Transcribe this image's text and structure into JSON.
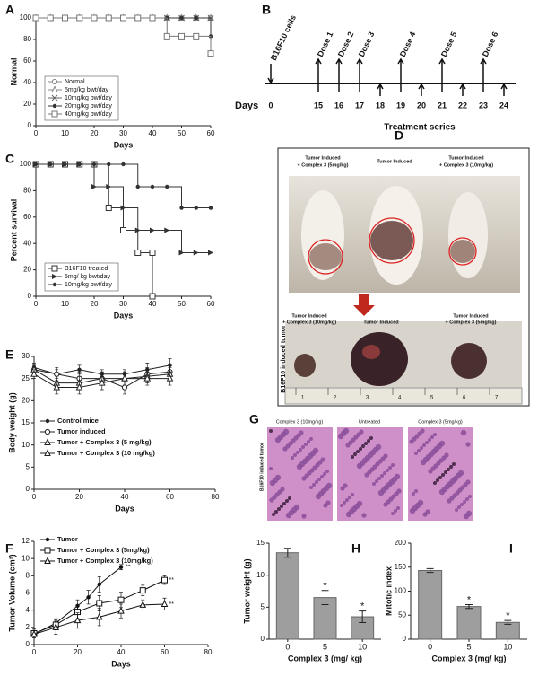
{
  "chart_data": [
    {
      "panel": "A",
      "type": "step",
      "ylabel": "Normal",
      "xlabel": "Days",
      "xlim": [
        0,
        60
      ],
      "xticks": [
        0,
        10,
        20,
        30,
        40,
        50,
        60
      ],
      "ylim": [
        0,
        100
      ],
      "yticks": [
        0,
        20,
        40,
        60,
        80,
        100
      ],
      "legend": "lower left",
      "series": [
        {
          "name": "Normal",
          "color": "#888888",
          "marker": "circle",
          "x": [
            0,
            5,
            10,
            15,
            20,
            25,
            30,
            35,
            40,
            45,
            50,
            55,
            60
          ],
          "values": [
            100,
            100,
            100,
            100,
            100,
            100,
            100,
            100,
            100,
            100,
            100,
            100,
            100
          ]
        },
        {
          "name": "5mg/kg bwt/day",
          "color": "#888888",
          "marker": "triangle",
          "x": [
            0,
            5,
            10,
            15,
            20,
            25,
            30,
            35,
            40,
            45,
            50,
            55,
            60
          ],
          "values": [
            100,
            100,
            100,
            100,
            100,
            100,
            100,
            100,
            100,
            100,
            100,
            100,
            100
          ]
        },
        {
          "name": "10mg/kg bwt/day",
          "color": "#666666",
          "marker": "x",
          "x": [
            0,
            5,
            10,
            15,
            20,
            25,
            30,
            35,
            40,
            45,
            50,
            55,
            60
          ],
          "values": [
            100,
            100,
            100,
            100,
            100,
            100,
            100,
            100,
            100,
            100,
            100,
            100,
            100
          ]
        },
        {
          "name": "20mg/kg bwt/day",
          "color": "#333333",
          "marker": "dot",
          "x": [
            0,
            5,
            10,
            15,
            20,
            25,
            30,
            35,
            40,
            45,
            50,
            55,
            60
          ],
          "values": [
            100,
            100,
            100,
            100,
            100,
            100,
            100,
            100,
            100,
            100,
            100,
            100,
            83
          ]
        },
        {
          "name": "40mg/kg bwt/day",
          "color": "#777777",
          "marker": "square",
          "x": [
            0,
            5,
            10,
            15,
            20,
            25,
            30,
            35,
            40,
            45,
            50,
            55,
            60
          ],
          "values": [
            100,
            100,
            100,
            100,
            100,
            100,
            100,
            100,
            100,
            83,
            83,
            83,
            67
          ]
        }
      ]
    },
    {
      "panel": "C",
      "type": "step",
      "ylabel": "Percent survival",
      "xlabel": "Days",
      "xlim": [
        0,
        60
      ],
      "xticks": [
        0,
        10,
        20,
        30,
        40,
        50,
        60
      ],
      "ylim": [
        0,
        100
      ],
      "yticks": [
        0,
        20,
        40,
        60,
        80,
        100
      ],
      "legend": "lower left",
      "series": [
        {
          "name": "B16F10 treated",
          "color": "#333333",
          "marker": "square",
          "x": [
            0,
            5,
            10,
            15,
            20,
            25,
            30,
            35,
            40,
            40
          ],
          "values": [
            100,
            100,
            100,
            100,
            100,
            67,
            50,
            33,
            33,
            0
          ]
        },
        {
          "name": "5mg/ kg bwt/day",
          "color": "#333333",
          "marker": "arrow",
          "x": [
            0,
            5,
            10,
            15,
            20,
            25,
            30,
            35,
            40,
            45,
            50,
            55,
            60
          ],
          "values": [
            100,
            100,
            100,
            100,
            83,
            83,
            67,
            50,
            50,
            50,
            33,
            33,
            33
          ]
        },
        {
          "name": "10mg/kg bwt/day",
          "color": "#333333",
          "marker": "dot",
          "x": [
            0,
            5,
            10,
            15,
            20,
            25,
            30,
            35,
            40,
            45,
            50,
            55,
            60
          ],
          "values": [
            100,
            100,
            100,
            100,
            100,
            100,
            100,
            83,
            83,
            83,
            67,
            67,
            67
          ]
        }
      ]
    },
    {
      "panel": "E",
      "type": "line",
      "ylabel": "Body weight (g)",
      "xlabel": "Days",
      "xlim": [
        0,
        80
      ],
      "xticks": [
        0,
        20,
        40,
        60,
        80
      ],
      "ylim": [
        0,
        30
      ],
      "yticks": [
        0,
        5,
        10,
        15,
        20,
        25,
        30
      ],
      "legend": "center left",
      "series": [
        {
          "name": "Control mice",
          "color": "#222222",
          "marker": "dot",
          "x": [
            0,
            10,
            20,
            30,
            40,
            50,
            60
          ],
          "values": [
            27.5,
            26,
            27,
            26,
            26,
            27,
            28
          ],
          "errors": [
            1,
            1,
            1,
            1,
            1,
            1.5,
            1.5
          ]
        },
        {
          "name": "Tumor induced",
          "color": "#222222",
          "marker": "circle",
          "x": [
            0,
            10,
            20,
            30,
            40,
            50,
            60
          ],
          "values": [
            27,
            26,
            25,
            25,
            23,
            26,
            26.5
          ],
          "errors": [
            1,
            1.5,
            1.5,
            1.5,
            1.5,
            1.5,
            1.5
          ]
        },
        {
          "name": "Tumor + Complex 3 (5 mg/kg)",
          "color": "#222222",
          "marker": "triangle",
          "x": [
            0,
            10,
            20,
            30,
            40,
            50,
            60
          ],
          "values": [
            27,
            24,
            24,
            25,
            25,
            25.5,
            26
          ],
          "errors": [
            1,
            1.5,
            1.5,
            1.5,
            1.5,
            1.5,
            1.5
          ]
        },
        {
          "name": "Tumor + Complex 3  (10 mg/kg)",
          "color": "#222222",
          "marker": "triangle",
          "x": [
            0,
            10,
            20,
            30,
            40,
            50,
            60
          ],
          "values": [
            26,
            23,
            23,
            24,
            25,
            25,
            25
          ],
          "errors": [
            1,
            1.5,
            1.5,
            1.5,
            1.5,
            1.5,
            1.5
          ]
        }
      ]
    },
    {
      "panel": "F",
      "type": "line",
      "ylabel": "Tumor Volume (cm³)",
      "xlabel": "Days",
      "xlim": [
        0,
        80
      ],
      "xticks": [
        0,
        20,
        40,
        60,
        80
      ],
      "ylim": [
        0,
        12
      ],
      "yticks": [
        0,
        2,
        4,
        6,
        8,
        10,
        12
      ],
      "legend": "upper left",
      "series": [
        {
          "name": "Tumor",
          "color": "#111111",
          "marker": "dot",
          "x": [
            0,
            10,
            20,
            25,
            30,
            40
          ],
          "values": [
            1.2,
            2.5,
            4.5,
            5.5,
            7,
            9
          ],
          "errors": [
            0.4,
            0.5,
            0.7,
            0.8,
            0.9,
            0.3
          ],
          "annotation": "**"
        },
        {
          "name": "Tumor + Complex 3 (5mg/kg)",
          "color": "#111111",
          "marker": "square",
          "x": [
            0,
            10,
            20,
            30,
            40,
            50,
            60
          ],
          "values": [
            1.3,
            2.3,
            3.8,
            4.8,
            5.2,
            6.3,
            7.5
          ],
          "errors": [
            0.5,
            0.6,
            0.8,
            0.9,
            0.9,
            0.6,
            0.5
          ],
          "annotation": "**"
        },
        {
          "name": "Tumor + Complex 3 (10mg/kg)",
          "color": "#111111",
          "marker": "triangle",
          "x": [
            0,
            10,
            20,
            30,
            40,
            50,
            60
          ],
          "values": [
            1.2,
            2,
            2.8,
            3.2,
            3.9,
            4.6,
            4.7
          ],
          "errors": [
            0.4,
            0.8,
            0.9,
            1,
            0.8,
            0.6,
            0.7
          ],
          "annotation": "**"
        }
      ]
    },
    {
      "panel": "H",
      "type": "bar",
      "ylabel": "Tumor weight (g)",
      "xlabel": "Complex 3 (mg/ kg)",
      "color": "#9e9e9e",
      "categories": [
        "0",
        "5",
        "10"
      ],
      "values": [
        13.5,
        6.5,
        3.5
      ],
      "errors": [
        0.7,
        1.1,
        0.9
      ],
      "value_annotations": [
        null,
        "*",
        "*"
      ],
      "ylim": [
        0,
        15
      ],
      "yticks": [
        0,
        5,
        10,
        15
      ]
    },
    {
      "panel": "I",
      "type": "bar",
      "ylabel": "Mitotic index",
      "xlabel": "Complex 3 (mg/ kg)",
      "color": "#9e9e9e",
      "categories": [
        "0",
        "5",
        "10"
      ],
      "values": [
        143,
        68,
        35
      ],
      "errors": [
        4,
        4,
        4
      ],
      "value_annotations": [
        null,
        "*",
        "*"
      ],
      "ylim": [
        0,
        200
      ],
      "yticks": [
        0,
        50,
        100,
        150,
        200
      ]
    }
  ],
  "timeline": {
    "panel": "B",
    "origin_label": "B16F10 cells",
    "days_label": "Days",
    "days": [
      0,
      15,
      16,
      17,
      18,
      19,
      20,
      21,
      22,
      23,
      24
    ],
    "doses": [
      {
        "label": "Dose 1",
        "day": 15
      },
      {
        "label": "Dose 2",
        "day": 16
      },
      {
        "label": "Dose 3",
        "day": 17
      },
      {
        "label": "Dose 4",
        "day": 19
      },
      {
        "label": "Dose 5",
        "day": 21
      },
      {
        "label": "Dose 6",
        "day": 23
      }
    ],
    "footer": "Treatment series"
  },
  "photo": {
    "panel": "D",
    "top_labels": [
      [
        "Tumor Induced",
        "+ Complex 3 (5mg/kg)"
      ],
      [
        "Tumor Induced"
      ],
      [
        "Tumor Induced",
        "+ Complex 3 (10mg/kg)"
      ]
    ],
    "bottom_labels": [
      [
        "Tumor Induced",
        "+ Complex 3 (10mg/kg)"
      ],
      [
        "Tumor Induced"
      ],
      [
        "Tumor Induced",
        "+ Complex 3 (5mg/kg)"
      ]
    ],
    "side_label": "B16F10 induced tumor",
    "ruler": [
      "1",
      "2",
      "3",
      "4",
      "5",
      "6",
      "7"
    ]
  },
  "histology": {
    "panel": "G",
    "labels": [
      "Complex 3 (10mg/kg)",
      "Untreated",
      "Complex 3 (5mg/kg)"
    ],
    "side_label": "B16F10 induced tumor"
  }
}
